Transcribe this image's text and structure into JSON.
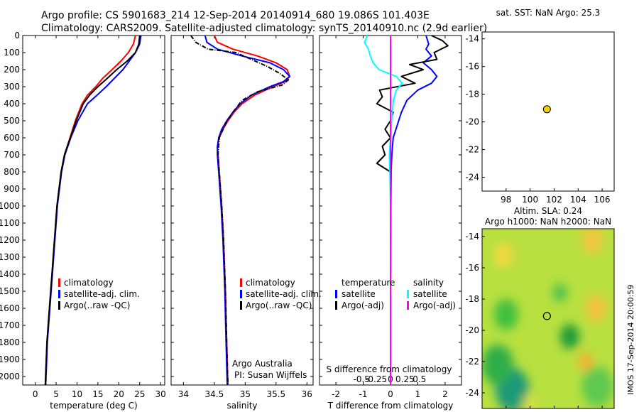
{
  "title": {
    "line1": "Argo profile: CS 5901683_214 12-Sep-2014 20140914_680 19.086S 101.403E",
    "line2": "Climatology: CARS2009. Satellite-adjusted climatology: synTS_20140910.nc (2.9d earlier)"
  },
  "colors": {
    "climatology": "#ff0000",
    "satellite": "#0000ff",
    "argo": "#000000",
    "temp_sat": "#0000ff",
    "sal_sat": "#00ffff",
    "sal_argo": "#ff00ff",
    "point": "#f5d000"
  },
  "depth_ticks": [
    "0",
    "100",
    "200",
    "300",
    "400",
    "500",
    "600",
    "700",
    "800",
    "900",
    "1000",
    "1100",
    "1200",
    "1300",
    "1400",
    "1500",
    "1600",
    "1700",
    "1800",
    "1900",
    "2000"
  ],
  "credit": {
    "line1": "Argo Australia",
    "line2": "PI: Susan Wijffels"
  },
  "timestamp": "IMOS 17-Sep-2014 20:00:59",
  "chart_data": [
    {
      "type": "line",
      "name": "temperature",
      "xlabel": "temperature (deg C)",
      "xlim": [
        -3,
        31
      ],
      "ylim": [
        2050,
        0
      ],
      "xticks": [
        0,
        5,
        10,
        15,
        20,
        25,
        30
      ],
      "xtick_labels": [
        "0",
        "5",
        "10",
        "15",
        "20",
        "25",
        "30"
      ],
      "legend": [
        "climatology",
        "satellite-adj. clim.",
        "Argo(..raw -QC)"
      ],
      "series": [
        {
          "name": "climatology",
          "depth": [
            0,
            50,
            100,
            150,
            200,
            250,
            300,
            350,
            400,
            500,
            600,
            700,
            800,
            1000,
            1200,
            1400,
            1600,
            1800,
            2050
          ],
          "values": [
            24.0,
            23.5,
            22.3,
            20.5,
            18.4,
            16.2,
            14.5,
            12.5,
            11.2,
            9.6,
            8.3,
            7.0,
            6.2,
            5.2,
            4.6,
            4.0,
            3.4,
            2.8,
            2.4
          ]
        },
        {
          "name": "satellite-adj. clim.",
          "depth": [
            0,
            50,
            100,
            150,
            200,
            250,
            300,
            350,
            400,
            500,
            600,
            700,
            800,
            1000,
            1200,
            1400,
            1600,
            1800,
            2050
          ],
          "values": [
            25.3,
            25.0,
            24.0,
            22.5,
            21.0,
            19.0,
            17.0,
            14.8,
            12.5,
            10.2,
            8.5,
            7.1,
            6.3,
            5.3,
            4.7,
            4.1,
            3.5,
            2.9,
            2.5
          ]
        },
        {
          "name": "Argo(..raw -QC)",
          "depth": [
            0,
            50,
            100,
            150,
            200,
            250,
            300,
            350,
            400,
            500,
            600,
            700,
            800,
            1000,
            1200,
            1400,
            1600,
            1800,
            2050
          ],
          "values": [
            25.0,
            24.8,
            24.0,
            22.0,
            19.5,
            17.3,
            15.0,
            13.0,
            11.5,
            9.8,
            8.4,
            7.0,
            6.2,
            5.2,
            4.6,
            4.0,
            3.4,
            2.8,
            2.4
          ]
        }
      ]
    },
    {
      "type": "line",
      "name": "salinity",
      "xlabel": "salinity",
      "xlim": [
        33.8,
        36.1
      ],
      "ylim": [
        2050,
        0
      ],
      "xticks": [
        34,
        34.5,
        35,
        35.5,
        36
      ],
      "xtick_labels": [
        "34",
        "34.5",
        "35",
        "35.5",
        "36"
      ],
      "legend": [
        "climatology",
        "satellite-adj. clim.",
        "Argo(..raw -QC)"
      ],
      "series": [
        {
          "name": "climatology",
          "depth": [
            0,
            40,
            80,
            120,
            160,
            200,
            240,
            270,
            300,
            350,
            400,
            450,
            500,
            550,
            600,
            650,
            700,
            800,
            1000,
            1200,
            1500,
            1800,
            2050
          ],
          "values": [
            34.5,
            34.55,
            34.8,
            35.2,
            35.5,
            35.68,
            35.72,
            35.65,
            35.45,
            35.15,
            34.95,
            34.82,
            34.72,
            34.64,
            34.58,
            34.55,
            34.56,
            34.58,
            34.62,
            34.65,
            34.68,
            34.7,
            34.72
          ]
        },
        {
          "name": "satellite-adj. clim.",
          "depth": [
            0,
            40,
            80,
            120,
            160,
            200,
            240,
            270,
            300,
            350,
            400,
            450,
            500,
            550,
            600,
            650,
            700,
            800,
            1000,
            1200,
            1500,
            1800,
            2050
          ],
          "values": [
            34.35,
            34.38,
            34.55,
            34.95,
            35.4,
            35.62,
            35.72,
            35.62,
            35.4,
            35.1,
            34.92,
            34.8,
            34.7,
            34.62,
            34.57,
            34.55,
            34.55,
            34.57,
            34.61,
            34.64,
            34.67,
            34.69,
            34.71
          ]
        },
        {
          "name": "Argo(..raw -QC)",
          "depth": [
            0,
            40,
            80,
            100,
            140,
            180,
            220,
            260,
            290,
            330,
            380,
            450,
            520,
            600,
            700,
            800,
            1000,
            1200,
            1500,
            1800,
            2050
          ],
          "values": [
            34.12,
            34.2,
            34.4,
            34.85,
            35.1,
            35.35,
            35.55,
            35.7,
            35.6,
            35.2,
            34.95,
            34.8,
            34.68,
            34.58,
            34.56,
            34.58,
            34.62,
            34.65,
            34.68,
            34.7,
            34.72
          ]
        }
      ]
    },
    {
      "type": "line",
      "name": "difference from climatology",
      "xlabel": "T difference from climatology",
      "xlabel2": "S difference from climatology",
      "xlim": [
        -2.6,
        2.6
      ],
      "ylim": [
        2050,
        0
      ],
      "xticks": [
        -2,
        -1,
        0,
        1,
        2
      ],
      "xtick_labels": [
        "-2",
        "-1",
        "0",
        "1",
        "2"
      ],
      "xticks2": [
        -0.5,
        -0.25,
        0,
        0.25,
        0.5
      ],
      "xtick2_labels": [
        "-0.5",
        "-0.25",
        "0",
        "0.25",
        "0.5"
      ],
      "legend_temperature": {
        "heading": "temperature",
        "items": [
          "satellite",
          "Argo(-adj)"
        ]
      },
      "legend_salinity": {
        "heading": "salinity",
        "items": [
          "satellite",
          "Argo(-adj)"
        ]
      },
      "series": [
        {
          "name": "temperature satellite",
          "depth": [
            0,
            50,
            80,
            120,
            160,
            200,
            240,
            280,
            320,
            380,
            450,
            500,
            550,
            600,
            700,
            800,
            1000,
            1500,
            2050
          ],
          "values": [
            1.3,
            1.4,
            1.3,
            1.5,
            1.2,
            1.5,
            1.7,
            1.5,
            1.0,
            0.6,
            0.4,
            0.3,
            0.2,
            0.1,
            0.05,
            0.02,
            0.01,
            0.0,
            0.0
          ]
        },
        {
          "name": "temperature Argo(-adj)",
          "depth": [
            0,
            30,
            60,
            100,
            140,
            170,
            200,
            240,
            280,
            320,
            360,
            400,
            450,
            500,
            550,
            600,
            650,
            700,
            750,
            800,
            1000,
            1500,
            2050
          ],
          "values": [
            1.5,
            1.9,
            2.1,
            1.6,
            1.7,
            0.7,
            1.2,
            0.4,
            0.9,
            -0.4,
            -0.3,
            -0.5,
            0.1,
            0.0,
            -0.2,
            0.0,
            -0.3,
            -0.2,
            -0.5,
            0.0,
            0.0,
            0.0,
            0.0
          ]
        },
        {
          "name": "salinity satellite",
          "depth": [
            0,
            40,
            80,
            120,
            160,
            200,
            240,
            280,
            320,
            380,
            450,
            500,
            600,
            700,
            800,
            1000,
            1500,
            2050
          ],
          "values": [
            -0.4,
            -0.45,
            -0.38,
            -0.35,
            -0.3,
            -0.2,
            0.1,
            0.2,
            0.1,
            0.05,
            0.03,
            0.02,
            0.0,
            -0.02,
            -0.01,
            0.0,
            0.0,
            0.0
          ]
        },
        {
          "name": "salinity Argo(-adj)",
          "depth": [
            0,
            2050
          ],
          "values": [
            0.0,
            0.0
          ]
        }
      ]
    },
    {
      "type": "scatter",
      "name": "map-sst",
      "title": "sat. SST: NaN Argo: 25.3",
      "xlim": [
        96,
        107
      ],
      "ylim": [
        -25,
        -13.5
      ],
      "xticks": [
        98,
        100,
        102,
        104,
        106
      ],
      "xtick_labels": [
        "98",
        "100",
        "102",
        "104",
        "106"
      ],
      "yticks": [
        -24,
        -22,
        -20,
        -18,
        -16,
        -14
      ],
      "ytick_labels": [
        "-24",
        "-22",
        "-20",
        "-18",
        "-16",
        "-14"
      ],
      "points": [
        {
          "lon": 101.403,
          "lat": -19.086
        }
      ]
    },
    {
      "type": "heatmap",
      "name": "map-sla",
      "title1": "Altim. SLA: 0.24",
      "title2": "Argo h1000: NaN h2000: NaN",
      "xlim": [
        96,
        107
      ],
      "ylim": [
        -25,
        -13.5
      ],
      "xticks": [
        98,
        100,
        102,
        104,
        106
      ],
      "xtick_labels": [
        "98",
        "100",
        "102",
        "104",
        "106"
      ],
      "yticks": [
        -24,
        -22,
        -20,
        -18,
        -16,
        -14
      ],
      "ytick_labels": [
        "-24",
        "-22",
        "-20",
        "-18",
        "-16",
        "-14"
      ],
      "points": [
        {
          "lon": 101.403,
          "lat": -19.086
        }
      ],
      "blobs": [
        {
          "lon": 98.5,
          "lat": -23.8,
          "r": 1.4,
          "color": "#1e9a78"
        },
        {
          "lon": 97.3,
          "lat": -22.2,
          "r": 1.3,
          "color": "#2fae48"
        },
        {
          "lon": 98.0,
          "lat": -19.0,
          "r": 1.0,
          "color": "#3fbf3f"
        },
        {
          "lon": 103.3,
          "lat": -20.4,
          "r": 0.8,
          "color": "#1f9a3a"
        },
        {
          "lon": 102.5,
          "lat": -17.6,
          "r": 0.6,
          "color": "#4cc24c"
        },
        {
          "lon": 105.6,
          "lat": -23.6,
          "r": 1.3,
          "color": "#5ec850"
        },
        {
          "lon": 105.5,
          "lat": -18.6,
          "r": 0.9,
          "color": "#f0c23a"
        },
        {
          "lon": 104.6,
          "lat": -22.0,
          "r": 0.6,
          "color": "#f5b030"
        },
        {
          "lon": 97.8,
          "lat": -15.2,
          "r": 0.8,
          "color": "#f2d840"
        },
        {
          "lon": 105.2,
          "lat": -14.2,
          "r": 0.9,
          "color": "#f0c83c"
        },
        {
          "lon": 100.0,
          "lat": -24.7,
          "r": 0.6,
          "color": "#d8e040"
        }
      ]
    }
  ]
}
